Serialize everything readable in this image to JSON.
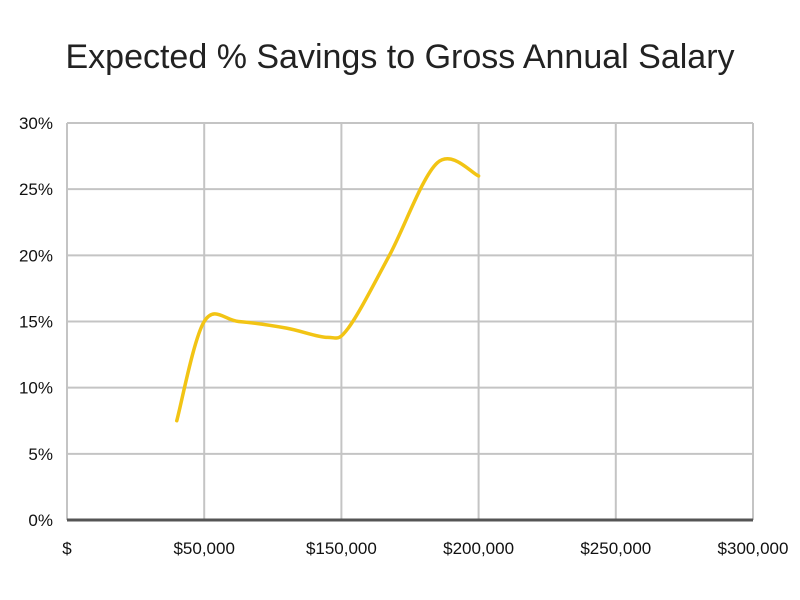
{
  "chart_data": {
    "type": "line",
    "title": "Expected % Savings to Gross Annual Salary",
    "xlabel": "",
    "ylabel": "",
    "x_tick_labels": [
      "$",
      "$50,000",
      "$150,000",
      "$200,000",
      "$250,000",
      "$300,000"
    ],
    "y_tick_labels": [
      "0%",
      "5%",
      "10%",
      "15%",
      "20%",
      "25%",
      "30%"
    ],
    "y_ticks": [
      0,
      5,
      10,
      15,
      20,
      25,
      30
    ],
    "ylim": [
      0,
      30
    ],
    "grid": true,
    "legend": "none",
    "series": [
      {
        "x_positions": [
          0.8,
          1.0,
          1.25,
          1.6,
          1.9,
          2.05,
          2.35,
          2.7,
          3.0
        ],
        "values": [
          7.5,
          15.0,
          15.0,
          14.5,
          13.8,
          14.5,
          20.0,
          27.0,
          26.0
        ],
        "color": "#f2c414"
      }
    ]
  },
  "colors": {
    "grid": "#c4c4c4",
    "axis": "#555555",
    "line": "#f2c414"
  }
}
